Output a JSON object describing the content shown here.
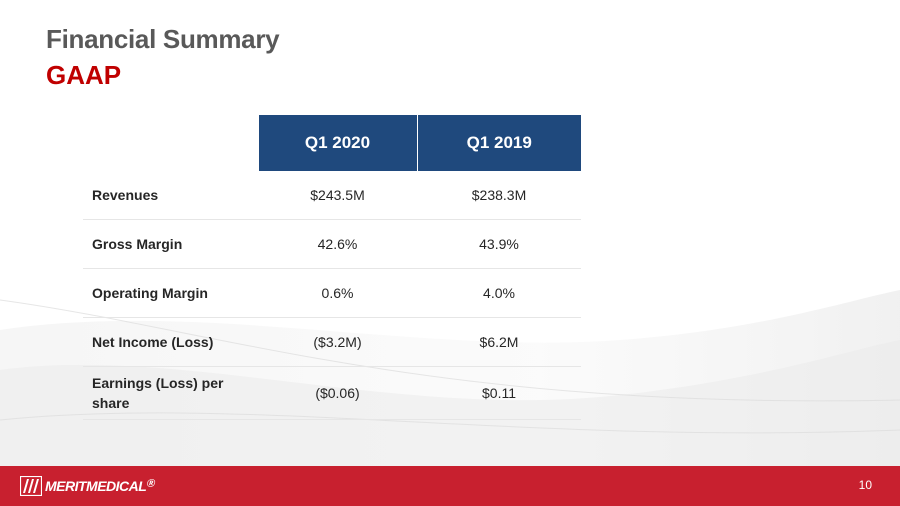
{
  "slide": {
    "title": "Financial Summary",
    "subtitle": "GAAP",
    "page_number": "10"
  },
  "table": {
    "columns": [
      "",
      "Q1 2020",
      "Q1 2019"
    ],
    "rows": [
      {
        "label": "Revenues",
        "q1_2020": "$243.5M",
        "q1_2019": "$238.3M"
      },
      {
        "label": "Gross Margin",
        "q1_2020": "42.6%",
        "q1_2019": "43.9%"
      },
      {
        "label": "Operating Margin",
        "q1_2020": "0.6%",
        "q1_2019": "4.0%"
      },
      {
        "label": "Net Income (Loss)",
        "q1_2020": "($3.2M)",
        "q1_2019": "$6.2M"
      },
      {
        "label": "Earnings (Loss) per share",
        "q1_2020": "($0.06)",
        "q1_2019": "$0.11"
      }
    ]
  },
  "footer": {
    "logo_text": "MERITMEDICAL",
    "logo_mark": "Ⓡ"
  },
  "colors": {
    "title": "#595959",
    "subtitle": "#c00000",
    "header_fill": "#1f497d",
    "footer_bar": "#c8202f"
  }
}
